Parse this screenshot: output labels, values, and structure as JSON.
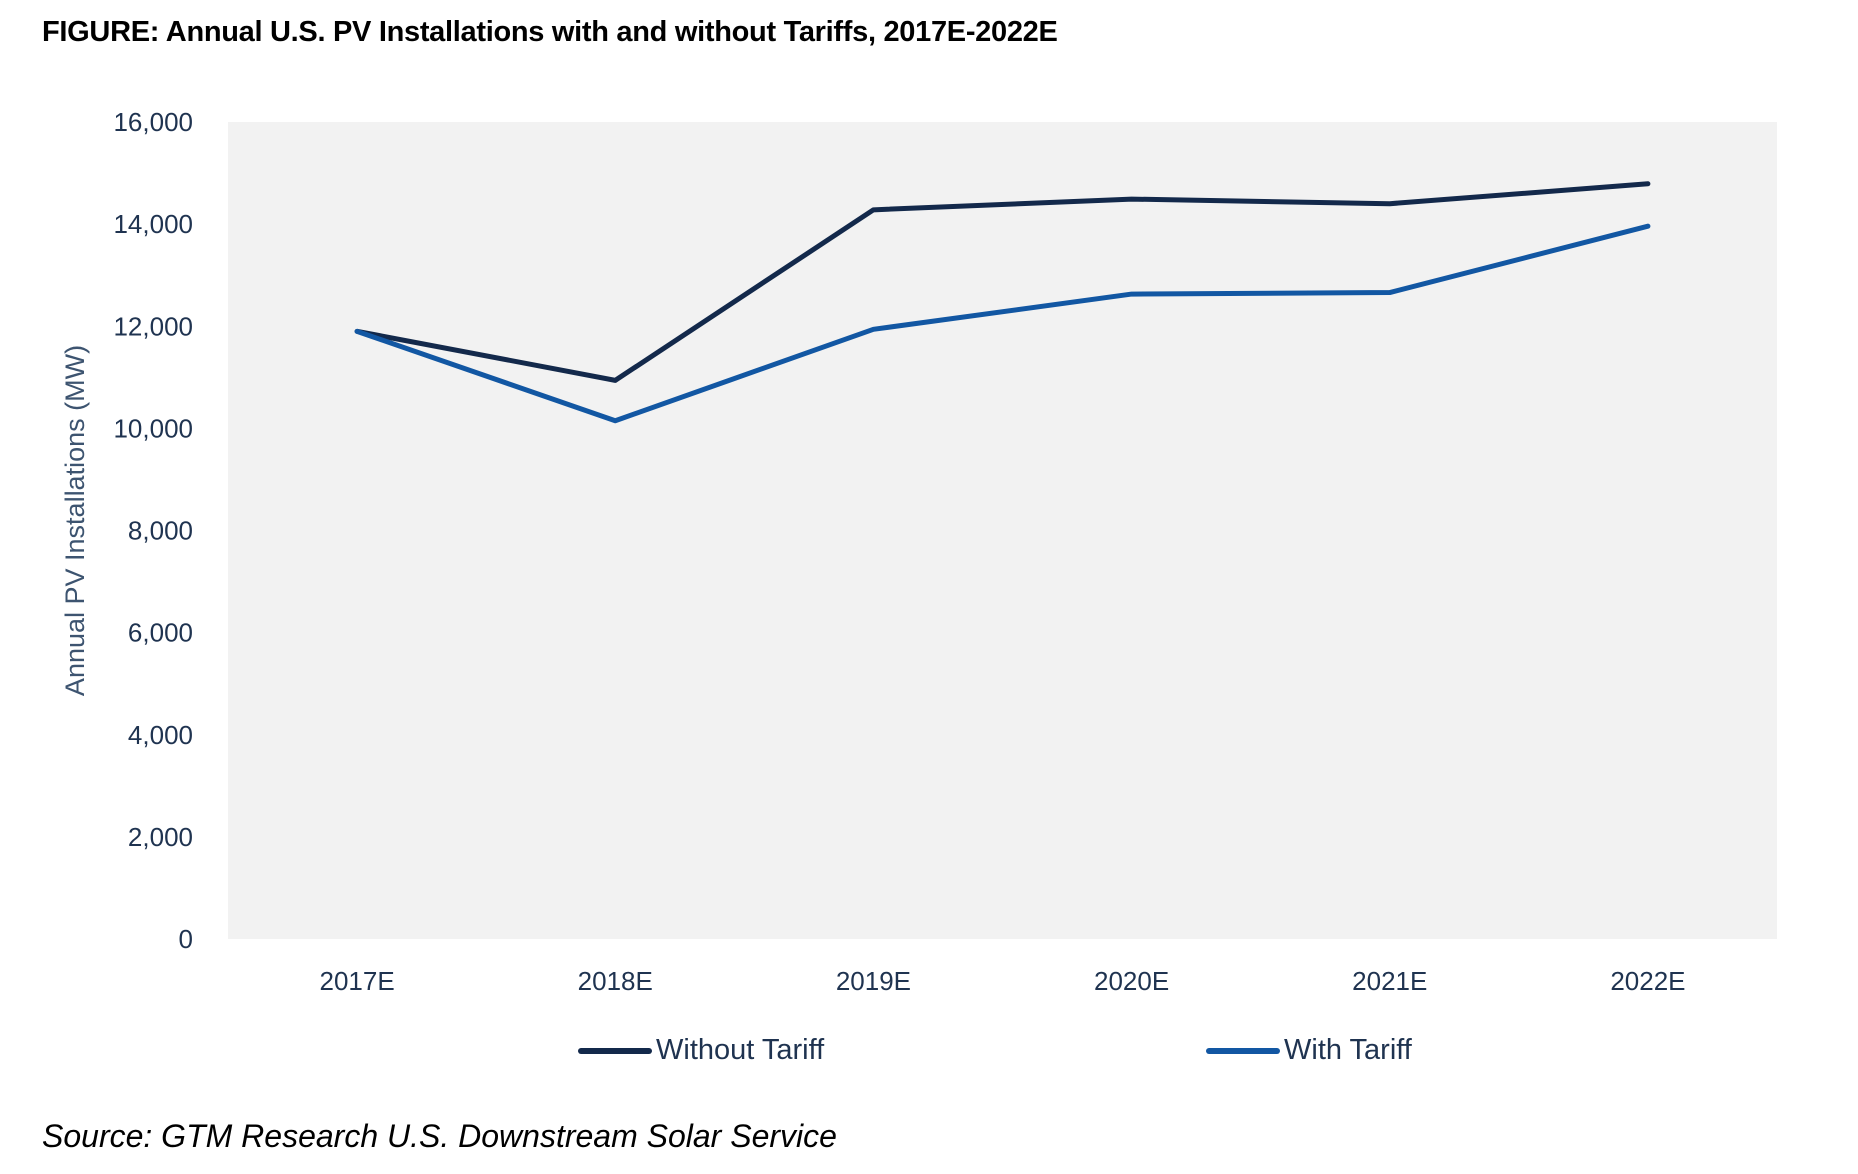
{
  "title": "FIGURE: Annual U.S. PV Installations with and without Tariffs, 2017E-2022E",
  "source": "Source: GTM Research U.S. Downstream Solar Service",
  "chart_data": {
    "type": "line",
    "title": "FIGURE: Annual U.S. PV Installations with and without Tariffs, 2017E-2022E",
    "xlabel": "",
    "ylabel": "Annual PV Installations (MW)",
    "categories": [
      "2017E",
      "2018E",
      "2019E",
      "2020E",
      "2021E",
      "2022E"
    ],
    "ylim": [
      0,
      16000
    ],
    "yticks": [
      0,
      2000,
      4000,
      6000,
      8000,
      10000,
      12000,
      14000,
      16000
    ],
    "ytick_labels": [
      "0",
      "2,000",
      "4,000",
      "6,000",
      "8,000",
      "10,000",
      "12,000",
      "14,000",
      "16,000"
    ],
    "grid": false,
    "plot_background": "#f2f2f2",
    "legend_position": "bottom",
    "series": [
      {
        "name": "Without Tariff",
        "color": "#13294b",
        "values": [
          11900,
          10940,
          14280,
          14490,
          14400,
          14790
        ]
      },
      {
        "name": "With Tariff",
        "color": "#1257a3",
        "values": [
          11900,
          10150,
          11940,
          12630,
          12660,
          13960
        ]
      }
    ]
  }
}
